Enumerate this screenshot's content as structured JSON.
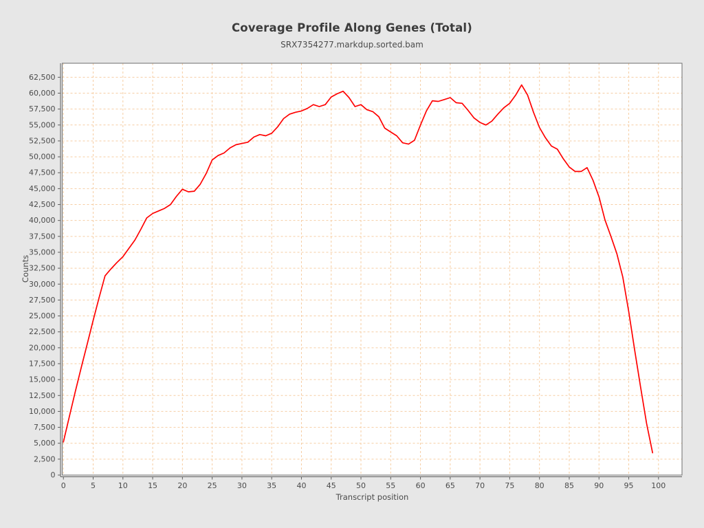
{
  "header": {
    "title": "Coverage Profile Along Genes (Total)",
    "subtitle": "SRX7354277.markdup.sorted.bam"
  },
  "colors": {
    "page_background": "#e7e7e7",
    "plot_background": "#ffffff",
    "grid": "#f6cda2",
    "axis": "#5f5f5f",
    "border": "#6e6e6e",
    "tick_label": "#4a4a4a",
    "line": "#ff0000"
  },
  "chart_data": {
    "type": "line",
    "title": "Coverage Profile Along Genes (Total)",
    "subtitle": "SRX7354277.markdup.sorted.bam",
    "xlabel": "Transcript position",
    "ylabel": "Counts",
    "legend": "none",
    "grid": true,
    "grid_style": "dashed",
    "xlim": [
      -0.2,
      103.95
    ],
    "ylim": [
      0,
      64700
    ],
    "xticks": [
      0,
      5,
      10,
      15,
      20,
      25,
      30,
      35,
      40,
      45,
      50,
      55,
      60,
      65,
      70,
      75,
      80,
      85,
      90,
      95,
      100
    ],
    "yticks": [
      0,
      2500,
      5000,
      7500,
      10000,
      12500,
      15000,
      17500,
      20000,
      22500,
      25000,
      27500,
      30000,
      32500,
      35000,
      37500,
      40000,
      42500,
      45000,
      47500,
      50000,
      52500,
      55000,
      57500,
      60000,
      62500
    ],
    "series": [
      {
        "name": "SRX7354277.markdup.sorted.bam",
        "color": "#ff0000",
        "x": [
          0,
          1,
          2,
          3,
          4,
          5,
          6,
          7,
          8,
          9,
          10,
          11,
          12,
          13,
          14,
          15,
          16,
          17,
          18,
          19,
          20,
          21,
          22,
          23,
          24,
          25,
          26,
          27,
          28,
          29,
          30,
          31,
          32,
          33,
          34,
          35,
          36,
          37,
          38,
          39,
          40,
          41,
          42,
          43,
          44,
          45,
          46,
          47,
          48,
          49,
          50,
          51,
          52,
          53,
          54,
          55,
          56,
          57,
          58,
          59,
          60,
          61,
          62,
          63,
          64,
          65,
          66,
          67,
          68,
          69,
          70,
          71,
          72,
          73,
          74,
          75,
          76,
          77,
          78,
          79,
          80,
          81,
          82,
          83,
          84,
          85,
          86,
          87,
          88,
          89,
          90,
          91,
          92,
          93,
          94,
          95,
          96,
          97,
          98,
          99
        ],
        "y": [
          5200,
          9200,
          13100,
          16900,
          20600,
          24300,
          27900,
          31300,
          32400,
          33400,
          34300,
          35600,
          36900,
          38600,
          40400,
          41100,
          41500,
          41900,
          42500,
          43800,
          44900,
          44500,
          44600,
          45700,
          47400,
          49500,
          50200,
          50600,
          51400,
          51900,
          52100,
          52300,
          53100,
          53500,
          53300,
          53700,
          54700,
          56000,
          56700,
          57000,
          57200,
          57600,
          58200,
          57900,
          58200,
          59400,
          59900,
          60300,
          59300,
          57900,
          58200,
          57400,
          57100,
          56300,
          54500,
          53900,
          53300,
          52200,
          52000,
          52600,
          55000,
          57200,
          58800,
          58700,
          59000,
          59300,
          58500,
          58400,
          57300,
          56100,
          55400,
          55000,
          55600,
          56700,
          57700,
          58400,
          59700,
          61300,
          59700,
          57000,
          54600,
          53000,
          51700,
          51200,
          49700,
          48400,
          47700,
          47700,
          48300,
          46300,
          43700,
          40100,
          37500,
          34800,
          31100,
          25700,
          19600,
          13800,
          8100,
          3500
        ]
      }
    ]
  }
}
